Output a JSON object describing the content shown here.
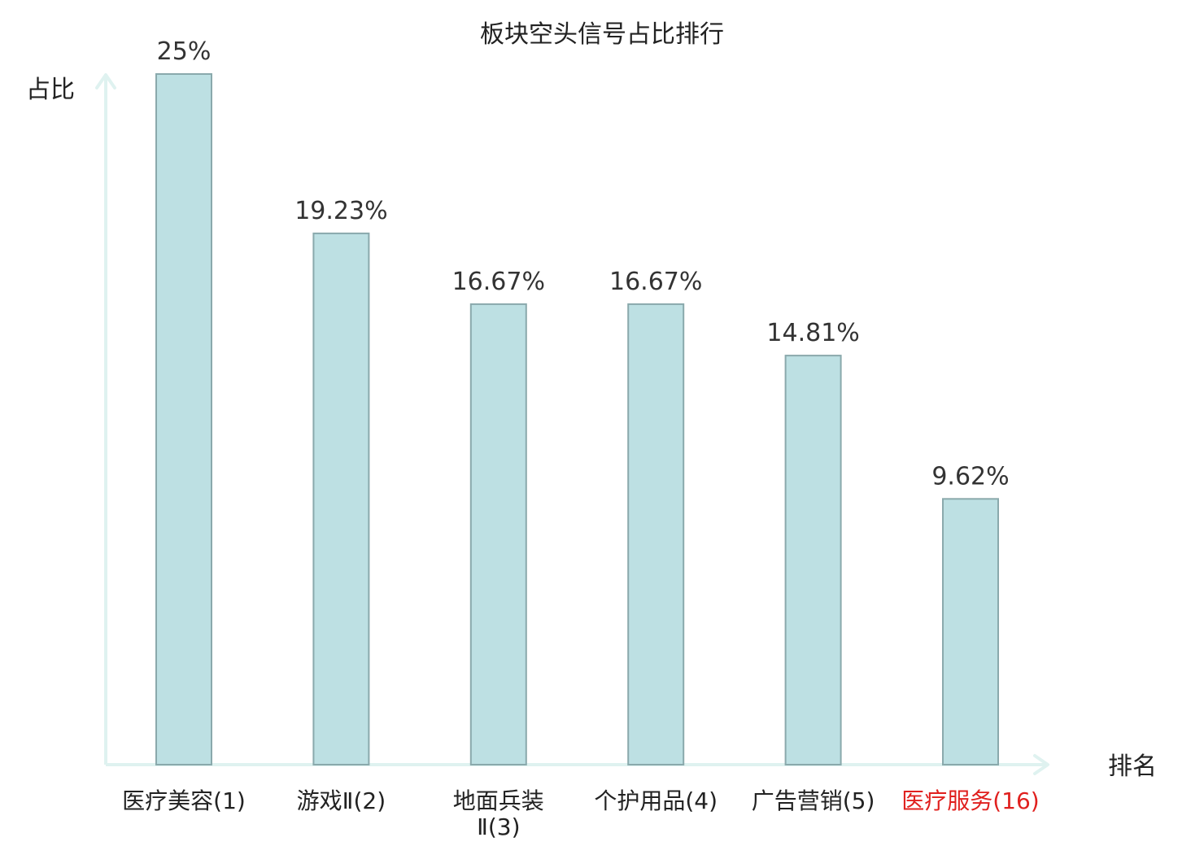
{
  "chart_data": {
    "type": "bar",
    "title": "板块空头信号占比排行",
    "xlabel": "排名",
    "ylabel": "占比",
    "ylim": [
      0,
      25
    ],
    "grid": false,
    "categories": [
      {
        "lines": [
          "医疗美容(1)"
        ],
        "highlight": false
      },
      {
        "lines": [
          "游戏Ⅱ(2)"
        ],
        "highlight": false
      },
      {
        "lines": [
          "地面兵装",
          "Ⅱ(3)"
        ],
        "highlight": false
      },
      {
        "lines": [
          "个护用品(4)"
        ],
        "highlight": false
      },
      {
        "lines": [
          "广告营销(5)"
        ],
        "highlight": false
      },
      {
        "lines": [
          "医疗服务(16)"
        ],
        "highlight": true
      }
    ],
    "values": [
      25,
      19.23,
      16.67,
      16.67,
      14.81,
      9.62
    ],
    "value_labels": [
      "25%",
      "19.23%",
      "16.67%",
      "16.67%",
      "14.81%",
      "9.62%"
    ],
    "colors": {
      "bar_fill": "#bde0e3",
      "bar_stroke": "#8aa9ac",
      "axis": "#dff2f0",
      "highlight_text": "#e0201e"
    }
  }
}
